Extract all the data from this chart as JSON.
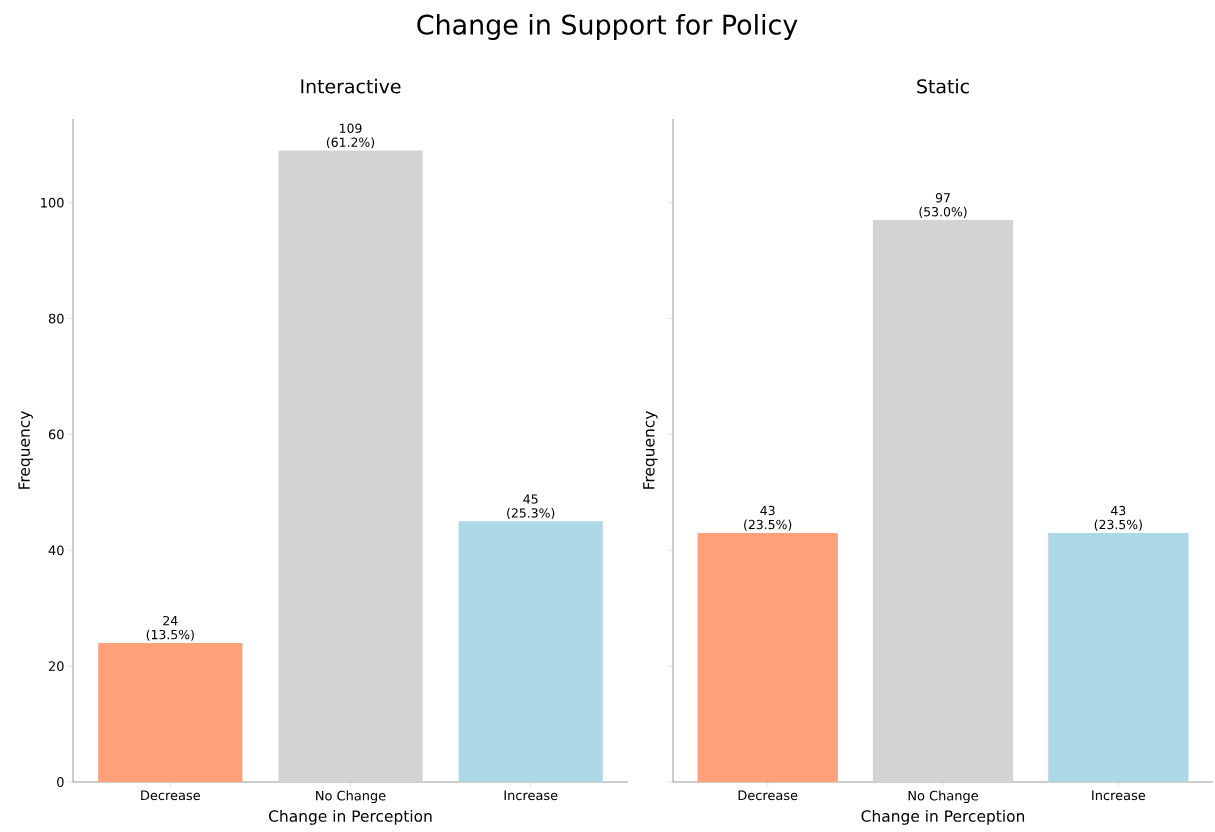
{
  "chart_data": [
    {
      "type": "bar",
      "title": "Interactive",
      "xlabel": "Change in Perception",
      "ylabel": "Frequency",
      "annotations": [
        "Change in Support for Policy"
      ],
      "categories": [
        "Decrease",
        "No Change",
        "Increase"
      ],
      "values": [
        24,
        109,
        45
      ],
      "colors": [
        "#ffa07a",
        "#d3d3d3",
        "#add8e6"
      ],
      "value_labels": [
        "24 (13.5%)",
        "109 (61.2%)",
        "45 (25.3%)"
      ],
      "ylim": [
        0,
        114.45
      ],
      "yticks": [
        0,
        20,
        40,
        60,
        80,
        100
      ]
    },
    {
      "type": "bar",
      "title": "Static",
      "xlabel": "Change in Perception",
      "ylabel": "Frequency",
      "categories": [
        "Decrease",
        "No Change",
        "Increase"
      ],
      "values": [
        43,
        97,
        43
      ],
      "colors": [
        "#ffa07a",
        "#d3d3d3",
        "#add8e6"
      ],
      "value_labels": [
        "43 (23.5%)",
        "97 (53.0%)",
        "43 (23.5%)"
      ],
      "ylim": [
        0,
        114.45
      ],
      "yticks": [
        0,
        20,
        40,
        60,
        80,
        100
      ],
      "tick_labels": "x"
    }
  ]
}
